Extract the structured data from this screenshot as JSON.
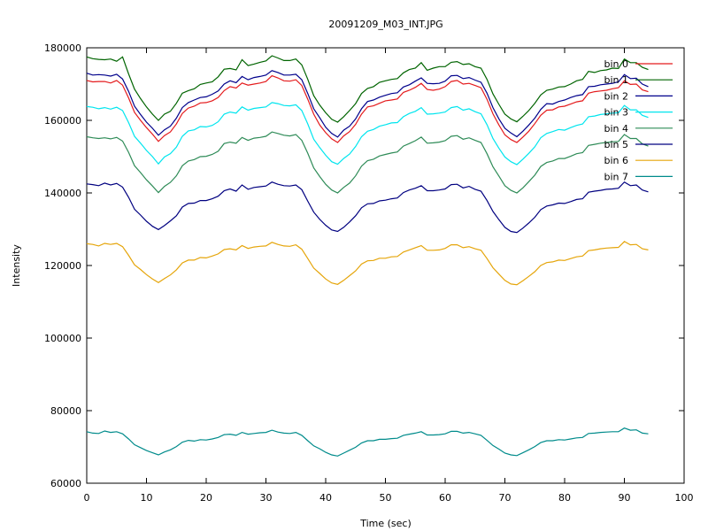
{
  "chart_data": {
    "type": "line",
    "title": "20091209_M03_INT.JPG",
    "xlabel": "Time (sec)",
    "ylabel": "Intensity",
    "xlim": [
      0,
      100
    ],
    "ylim": [
      60000,
      180000
    ],
    "xticks": [
      "0",
      "10",
      "20",
      "30",
      "40",
      "50",
      "60",
      "70",
      "80",
      "90",
      "100"
    ],
    "yticks": [
      "60000",
      "80000",
      "100000",
      "120000",
      "140000",
      "160000",
      "180000"
    ],
    "grid": false,
    "legend_position": "top-right",
    "x": [
      0,
      1,
      2,
      3,
      4,
      5,
      6,
      7,
      8,
      9,
      10,
      11,
      12,
      13,
      14,
      15,
      16,
      17,
      18,
      19,
      20,
      21,
      22,
      23,
      24,
      25,
      26,
      27,
      28,
      29,
      30,
      31,
      32,
      33,
      34,
      35,
      36,
      37,
      38,
      39,
      40,
      41,
      42,
      43,
      44,
      45,
      46,
      47,
      48,
      49,
      50,
      51,
      52,
      53,
      54,
      55,
      56,
      57,
      58,
      59,
      60,
      61,
      62,
      63,
      64,
      65,
      66,
      67,
      68,
      69,
      70,
      71,
      72,
      73,
      74,
      75,
      76,
      77,
      78,
      79,
      80,
      81,
      82,
      83,
      84,
      85,
      86,
      87,
      88,
      89,
      90,
      91,
      92,
      93,
      94
    ],
    "series": [
      {
        "name": "bin 0",
        "color": "#e41a1c",
        "values": [
          171000,
          170600,
          170700,
          170700,
          170300,
          171000,
          169700,
          166200,
          162200,
          160000,
          158000,
          156200,
          154200,
          155800,
          156800,
          159000,
          161900,
          163400,
          163900,
          164800,
          164900,
          165400,
          166300,
          168200,
          169300,
          168900,
          170300,
          169700,
          170000,
          170300,
          170700,
          172300,
          171700,
          170900,
          170800,
          171200,
          169600,
          165800,
          161700,
          158700,
          156600,
          154900,
          153900,
          155700,
          156900,
          158900,
          161700,
          163700,
          164000,
          164700,
          165400,
          165600,
          165900,
          167700,
          168300,
          169100,
          170200,
          168500,
          168300,
          168600,
          169300,
          170700,
          171000,
          170000,
          170200,
          169600,
          169000,
          165800,
          161800,
          158700,
          156000,
          154700,
          153900,
          155400,
          157000,
          159100,
          161400,
          162800,
          162900,
          163700,
          163900,
          164500,
          165100,
          165400,
          167500,
          167900,
          168100,
          168300,
          168700,
          169000,
          170900,
          169900,
          170000,
          168400,
          167900
        ]
      },
      {
        "name": "bin 1",
        "color": "#006400",
        "values": [
          177500,
          177000,
          176800,
          176700,
          176900,
          176300,
          177500,
          172800,
          168600,
          166000,
          163700,
          161700,
          160000,
          161700,
          162500,
          164700,
          167500,
          168200,
          168700,
          169900,
          170300,
          170600,
          172000,
          174100,
          174300,
          173900,
          176700,
          175100,
          175500,
          176000,
          176400,
          177800,
          177200,
          176500,
          176500,
          176900,
          175300,
          171300,
          166800,
          164200,
          162100,
          160300,
          159500,
          161000,
          162700,
          164600,
          167400,
          168800,
          169300,
          170500,
          170900,
          171300,
          171500,
          173100,
          174000,
          174400,
          175900,
          173800,
          174400,
          174800,
          174800,
          176000,
          176200,
          175400,
          175600,
          174800,
          174400,
          171300,
          167300,
          164400,
          161700,
          160400,
          159600,
          161100,
          162700,
          164700,
          167000,
          168300,
          168600,
          169200,
          169300,
          170000,
          170900,
          171300,
          173500,
          173200,
          173700,
          173900,
          174400,
          174300,
          176900,
          175900,
          175900,
          174600,
          174000
        ]
      },
      {
        "name": "bin 2",
        "color": "#00008b",
        "values": [
          173000,
          172500,
          172600,
          172500,
          172200,
          172700,
          171400,
          168000,
          163900,
          161600,
          159500,
          157800,
          155900,
          157400,
          158400,
          160600,
          163500,
          164900,
          165600,
          166300,
          166500,
          167200,
          168100,
          170000,
          170900,
          170400,
          172100,
          171200,
          171800,
          172100,
          172500,
          173700,
          173200,
          172500,
          172500,
          172700,
          171200,
          167400,
          163200,
          160700,
          158100,
          156400,
          155400,
          157300,
          158400,
          160400,
          163200,
          165200,
          165600,
          166400,
          166900,
          167400,
          167600,
          169200,
          169800,
          170800,
          171700,
          170200,
          170100,
          170200,
          170800,
          172300,
          172400,
          171500,
          171800,
          171100,
          170500,
          167500,
          163500,
          160400,
          157800,
          156500,
          155500,
          157000,
          158700,
          160600,
          163000,
          164600,
          164500,
          165200,
          165600,
          166300,
          166800,
          167100,
          169300,
          169400,
          169800,
          170000,
          170200,
          170600,
          172600,
          171500,
          171600,
          170000,
          169300
        ]
      },
      {
        "name": "bin 3",
        "color": "#00e5ee",
        "values": [
          163800,
          163600,
          163200,
          163500,
          163100,
          163600,
          162700,
          159400,
          155600,
          153700,
          151700,
          150000,
          148000,
          149900,
          150800,
          152600,
          155600,
          157100,
          157400,
          158300,
          158200,
          158600,
          159600,
          161700,
          162300,
          162000,
          163700,
          162800,
          163300,
          163500,
          163700,
          164900,
          164600,
          164100,
          164000,
          164300,
          162700,
          159000,
          154800,
          152500,
          150400,
          148600,
          147900,
          149500,
          150700,
          152800,
          155500,
          157000,
          157500,
          158400,
          158800,
          159300,
          159400,
          161000,
          161900,
          162500,
          163500,
          161700,
          161800,
          162000,
          162300,
          163500,
          163800,
          162800,
          163200,
          162400,
          161800,
          158800,
          155000,
          152300,
          149900,
          148600,
          147800,
          149300,
          150900,
          152700,
          155200,
          156400,
          156900,
          157500,
          157300,
          158000,
          158600,
          159000,
          161000,
          161200,
          161600,
          161800,
          162000,
          162100,
          164100,
          162900,
          162900,
          161400,
          160800
        ]
      },
      {
        "name": "bin 4",
        "color": "#2e8b57",
        "values": [
          155500,
          155200,
          155000,
          155200,
          154900,
          155300,
          154300,
          151200,
          147500,
          145600,
          143600,
          141900,
          140100,
          141800,
          142900,
          144700,
          147500,
          148800,
          149200,
          150000,
          150100,
          150600,
          151500,
          153600,
          154000,
          153700,
          155300,
          154500,
          155100,
          155300,
          155600,
          156800,
          156400,
          155900,
          155700,
          156100,
          154500,
          150900,
          146900,
          144500,
          142400,
          140800,
          140000,
          141500,
          142700,
          144700,
          147400,
          148900,
          149300,
          150200,
          150600,
          151000,
          151300,
          152900,
          153600,
          154400,
          155400,
          153700,
          153800,
          154000,
          154400,
          155600,
          155800,
          154800,
          155200,
          154500,
          153900,
          150800,
          147200,
          144600,
          142000,
          140700,
          140000,
          141400,
          143100,
          144900,
          147300,
          148400,
          148800,
          149500,
          149500,
          150100,
          150800,
          151100,
          153100,
          153400,
          153700,
          153900,
          154100,
          154200,
          156100,
          155000,
          155000,
          153500,
          152900
        ]
      },
      {
        "name": "bin 5",
        "color": "#000080",
        "values": [
          142500,
          142300,
          142000,
          142700,
          142200,
          142600,
          141600,
          138800,
          135500,
          133900,
          132200,
          130800,
          129900,
          131000,
          132300,
          133700,
          136100,
          137100,
          137200,
          137900,
          137900,
          138400,
          139100,
          140600,
          141100,
          140500,
          142200,
          141000,
          141500,
          141700,
          141900,
          143000,
          142400,
          142000,
          141900,
          142200,
          140900,
          137700,
          134700,
          132700,
          131100,
          129800,
          129400,
          130500,
          132000,
          133700,
          135900,
          137000,
          137100,
          137800,
          138000,
          138400,
          138600,
          140100,
          140800,
          141300,
          142000,
          140600,
          140600,
          140800,
          141100,
          142300,
          142400,
          141400,
          141800,
          141000,
          140500,
          137900,
          134900,
          132600,
          130500,
          129400,
          129100,
          130300,
          131700,
          133300,
          135400,
          136400,
          136700,
          137200,
          137100,
          137600,
          138200,
          138400,
          140200,
          140500,
          140700,
          141000,
          141100,
          141300,
          143000,
          142000,
          142200,
          140800,
          140300
        ]
      },
      {
        "name": "bin 6",
        "color": "#e5a50a",
        "values": [
          126000,
          125800,
          125400,
          126100,
          125800,
          126100,
          125200,
          122800,
          120200,
          118900,
          117500,
          116300,
          115300,
          116400,
          117400,
          118800,
          120700,
          121500,
          121500,
          122200,
          122100,
          122600,
          123200,
          124400,
          124600,
          124300,
          125500,
          124700,
          125100,
          125300,
          125400,
          126400,
          125800,
          125400,
          125300,
          125700,
          124500,
          121900,
          119300,
          117800,
          116300,
          115200,
          114800,
          115900,
          117200,
          118500,
          120400,
          121300,
          121400,
          122000,
          122000,
          122400,
          122500,
          123700,
          124300,
          124900,
          125500,
          124200,
          124200,
          124300,
          124700,
          125700,
          125700,
          124900,
          125200,
          124600,
          124200,
          121900,
          119400,
          117600,
          115900,
          114900,
          114700,
          115800,
          117000,
          118300,
          120000,
          120800,
          121000,
          121500,
          121400,
          121900,
          122400,
          122600,
          124100,
          124300,
          124600,
          124800,
          124900,
          125000,
          126600,
          125700,
          125800,
          124600,
          124300
        ]
      },
      {
        "name": "bin 7",
        "color": "#008b8b",
        "values": [
          74200,
          73800,
          73700,
          74400,
          74000,
          74200,
          73600,
          72200,
          70600,
          69800,
          69000,
          68400,
          67800,
          68600,
          69200,
          70100,
          71300,
          71800,
          71600,
          72000,
          71900,
          72200,
          72600,
          73400,
          73500,
          73200,
          74000,
          73500,
          73700,
          73900,
          74000,
          74600,
          74100,
          73800,
          73700,
          74000,
          73200,
          71700,
          70300,
          69500,
          68500,
          67800,
          67500,
          68300,
          69100,
          69900,
          71100,
          71700,
          71700,
          72100,
          72100,
          72300,
          72400,
          73200,
          73500,
          73800,
          74200,
          73300,
          73300,
          73400,
          73600,
          74300,
          74300,
          73800,
          74000,
          73600,
          73200,
          71800,
          70400,
          69400,
          68300,
          67800,
          67600,
          68400,
          69200,
          70100,
          71200,
          71700,
          71700,
          72000,
          71900,
          72200,
          72500,
          72600,
          73700,
          73800,
          74000,
          74100,
          74200,
          74200,
          75200,
          74600,
          74700,
          73800,
          73600
        ]
      }
    ]
  }
}
